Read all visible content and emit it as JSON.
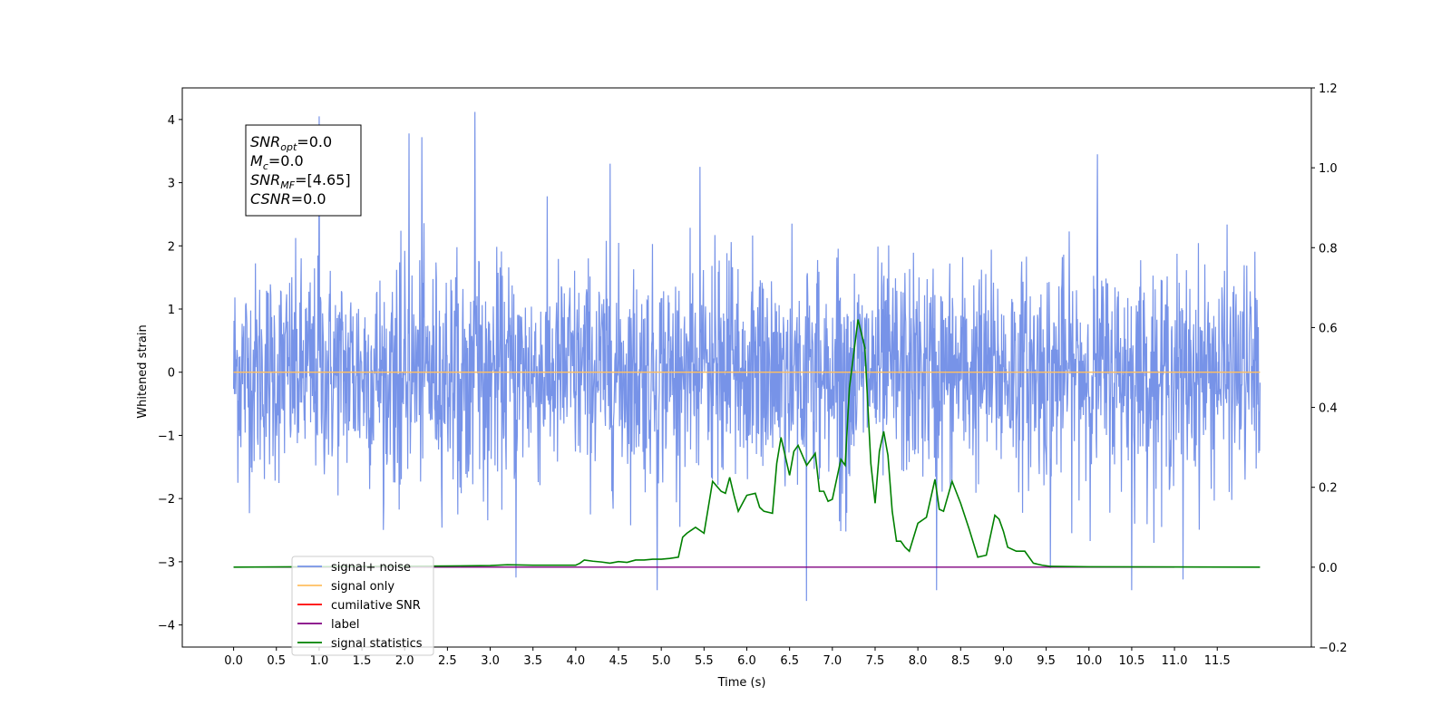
{
  "chart_data": {
    "type": "line",
    "xlabel": "Time (s)",
    "ylabel": "Whitened strain",
    "xlim": [
      -0.6,
      12.6
    ],
    "ylim": [
      -4.35,
      4.5
    ],
    "y2lim": [
      -0.2,
      1.2
    ],
    "x_ticks": [
      0.0,
      0.5,
      1.0,
      1.5,
      2.0,
      2.5,
      3.0,
      3.5,
      4.0,
      4.5,
      5.0,
      5.5,
      6.0,
      6.5,
      7.0,
      7.5,
      8.0,
      8.5,
      9.0,
      9.5,
      10.0,
      10.5,
      11.0,
      11.5
    ],
    "x_tick_labels": [
      "0.0",
      "0.5",
      "1.0",
      "1.5",
      "2.0",
      "2.5",
      "3.0",
      "3.5",
      "4.0",
      "4.5",
      "5.0",
      "5.5",
      "6.0",
      "6.5",
      "7.0",
      "7.5",
      "8.0",
      "8.5",
      "9.0",
      "9.5",
      "10.0",
      "10.5",
      "11.0",
      "11.5"
    ],
    "y_ticks": [
      -4,
      -3,
      -2,
      -1,
      0,
      1,
      2,
      3,
      4
    ],
    "y_tick_labels": [
      "−4",
      "−3",
      "−2",
      "−1",
      "0",
      "1",
      "2",
      "3",
      "4"
    ],
    "y2_ticks": [
      -0.2,
      0.0,
      0.2,
      0.4,
      0.6,
      0.8,
      1.0,
      1.2
    ],
    "y2_tick_labels": [
      "−0.2",
      "0.0",
      "0.2",
      "0.4",
      "0.6",
      "0.8",
      "1.0",
      "1.2"
    ],
    "grid": false,
    "legend_position": "lower-left",
    "annotation_lines": [
      {
        "main": "SNR",
        "sub": "opt",
        "rest": "=0.0"
      },
      {
        "main": "M",
        "sub": "c",
        "rest": "=0.0"
      },
      {
        "main": "SNR",
        "sub": "MF",
        "rest": "=[4.65]"
      },
      {
        "main": "CSNR",
        "sub": "",
        "rest": "=0.0"
      }
    ],
    "series": [
      {
        "name": "signal+ noise",
        "color": "#7793e8",
        "axis": "left",
        "kind": "noise",
        "x_range": [
          0.0,
          12.0
        ],
        "envelope": {
          "typical_high": 2.2,
          "typical_low": -2.2,
          "max": 4.12,
          "min": -3.62
        },
        "spikes": [
          [
            1.0,
            4.05
          ],
          [
            2.05,
            3.78
          ],
          [
            2.2,
            3.72
          ],
          [
            2.82,
            4.12
          ],
          [
            4.4,
            3.3
          ],
          [
            5.45,
            3.25
          ],
          [
            9.55,
            -3.1
          ],
          [
            6.7,
            -3.62
          ],
          [
            4.95,
            -3.45
          ],
          [
            3.3,
            -3.25
          ],
          [
            10.5,
            -3.45
          ],
          [
            8.22,
            -3.45
          ],
          [
            11.1,
            -3.28
          ],
          [
            10.1,
            3.45
          ]
        ]
      },
      {
        "name": "signal only",
        "color": "#ffbf60",
        "axis": "left",
        "x": [
          0.0,
          12.0
        ],
        "y": [
          0.0,
          0.0
        ]
      },
      {
        "name": "cumilative SNR",
        "color": "#ff0000",
        "axis": "right",
        "x": [],
        "y": []
      },
      {
        "name": "label",
        "color": "#800080",
        "axis": "right",
        "x": [
          0.0,
          11.0
        ],
        "y": [
          0.0,
          0.0
        ]
      },
      {
        "name": "signal statistics",
        "color": "#008000",
        "axis": "right",
        "x": [
          0.0,
          2.5,
          3.0,
          3.2,
          3.5,
          4.0,
          4.05,
          4.1,
          4.2,
          4.3,
          4.4,
          4.5,
          4.6,
          4.7,
          4.8,
          4.9,
          5.0,
          5.1,
          5.2,
          5.25,
          5.3,
          5.4,
          5.5,
          5.55,
          5.6,
          5.7,
          5.75,
          5.8,
          5.85,
          5.9,
          6.0,
          6.1,
          6.15,
          6.2,
          6.3,
          6.35,
          6.4,
          6.5,
          6.55,
          6.6,
          6.7,
          6.8,
          6.85,
          6.9,
          6.95,
          7.0,
          7.1,
          7.15,
          7.2,
          7.3,
          7.38,
          7.45,
          7.5,
          7.55,
          7.6,
          7.65,
          7.7,
          7.75,
          7.8,
          7.85,
          7.9,
          8.0,
          8.1,
          8.2,
          8.25,
          8.3,
          8.4,
          8.5,
          8.6,
          8.7,
          8.8,
          8.9,
          8.95,
          9.0,
          9.05,
          9.15,
          9.25,
          9.35,
          9.45,
          9.55,
          10.0,
          12.0
        ],
        "y": [
          0.0,
          0.003,
          0.004,
          0.006,
          0.005,
          0.005,
          0.01,
          0.018,
          0.015,
          0.013,
          0.01,
          0.014,
          0.012,
          0.018,
          0.018,
          0.02,
          0.02,
          0.022,
          0.025,
          0.075,
          0.085,
          0.1,
          0.085,
          0.15,
          0.215,
          0.19,
          0.185,
          0.225,
          0.18,
          0.14,
          0.18,
          0.185,
          0.15,
          0.14,
          0.135,
          0.26,
          0.325,
          0.23,
          0.29,
          0.305,
          0.255,
          0.285,
          0.19,
          0.19,
          0.165,
          0.17,
          0.27,
          0.255,
          0.45,
          0.62,
          0.55,
          0.26,
          0.16,
          0.29,
          0.34,
          0.28,
          0.14,
          0.065,
          0.065,
          0.05,
          0.04,
          0.11,
          0.125,
          0.22,
          0.145,
          0.14,
          0.215,
          0.16,
          0.095,
          0.025,
          0.03,
          0.13,
          0.12,
          0.09,
          0.05,
          0.04,
          0.04,
          0.01,
          0.005,
          0.002,
          0.001,
          0.0
        ]
      }
    ]
  }
}
